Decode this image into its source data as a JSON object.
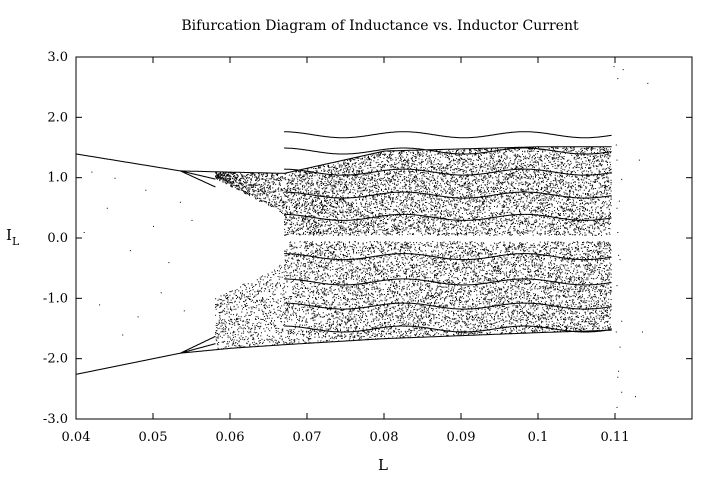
{
  "chart_data": {
    "type": "scatter",
    "title": "Bifurcation Diagram of Inductance vs. Inductor Current",
    "xlabel": "L",
    "ylabel": {
      "main": "I",
      "sub": "L"
    },
    "xlim": [
      0.04,
      0.12
    ],
    "ylim": [
      -3.0,
      3.0
    ],
    "x_ticks": [
      "0.04",
      "0.05",
      "0.06",
      "0.07",
      "0.08",
      "0.09",
      "0.1",
      "0.11"
    ],
    "y_ticks": [
      "-3.0",
      "-2.0",
      "-1.0",
      "0.0",
      "1.0",
      "2.0",
      "3.0"
    ],
    "grid": false,
    "legend": "none",
    "point_color": "#000000",
    "branches": {
      "upper_envelope": [
        [
          0.04,
          1.4
        ],
        [
          0.0535,
          1.12
        ],
        [
          0.06,
          1.1
        ],
        [
          0.067,
          1.08
        ],
        [
          0.08,
          1.45
        ],
        [
          0.1,
          1.52
        ],
        [
          0.1095,
          1.52
        ]
      ],
      "lower_envelope": [
        [
          0.04,
          -2.25
        ],
        [
          0.0535,
          -1.9
        ],
        [
          0.06,
          -1.82
        ],
        [
          0.067,
          -1.76
        ],
        [
          0.08,
          -1.66
        ],
        [
          0.1,
          -1.56
        ],
        [
          0.1095,
          -1.52
        ]
      ],
      "period_doubling_x": 0.0535,
      "chaos_onset_x": 0.058,
      "period_window": [
        0.067,
        0.0695
      ],
      "chaos_end_x": 0.1095
    },
    "stray_points": [
      [
        0.111,
        2.8
      ],
      [
        0.1103,
        2.65
      ],
      [
        0.1142,
        2.57
      ],
      [
        0.1101,
        1.55
      ],
      [
        0.1102,
        1.3
      ],
      [
        0.1108,
        0.98
      ],
      [
        0.1131,
        1.3
      ],
      [
        0.1105,
        0.62
      ],
      [
        0.1102,
        0.5
      ],
      [
        0.1103,
        0.1
      ],
      [
        0.1104,
        -0.28
      ],
      [
        0.1106,
        -0.35
      ],
      [
        0.1102,
        -0.78
      ],
      [
        0.1108,
        -1.37
      ],
      [
        0.1101,
        -1.55
      ],
      [
        0.1106,
        -1.8
      ],
      [
        0.1104,
        -2.2
      ],
      [
        0.1103,
        -2.3
      ],
      [
        0.1108,
        -2.55
      ],
      [
        0.1126,
        -2.62
      ],
      [
        0.1102,
        -2.8
      ],
      [
        0.1135,
        -1.55
      ],
      [
        0.1098,
        2.85
      ],
      [
        0.042,
        1.1
      ],
      [
        0.044,
        0.5
      ],
      [
        0.047,
        -0.2
      ],
      [
        0.049,
        0.8
      ],
      [
        0.051,
        -0.9
      ],
      [
        0.043,
        -1.1
      ],
      [
        0.046,
        -1.6
      ],
      [
        0.05,
        0.2
      ],
      [
        0.052,
        -0.4
      ],
      [
        0.055,
        0.3
      ],
      [
        0.045,
        1.0
      ],
      [
        0.048,
        -1.3
      ],
      [
        0.054,
        -1.2
      ],
      [
        0.041,
        0.1
      ],
      [
        0.0535,
        0.6
      ]
    ]
  }
}
